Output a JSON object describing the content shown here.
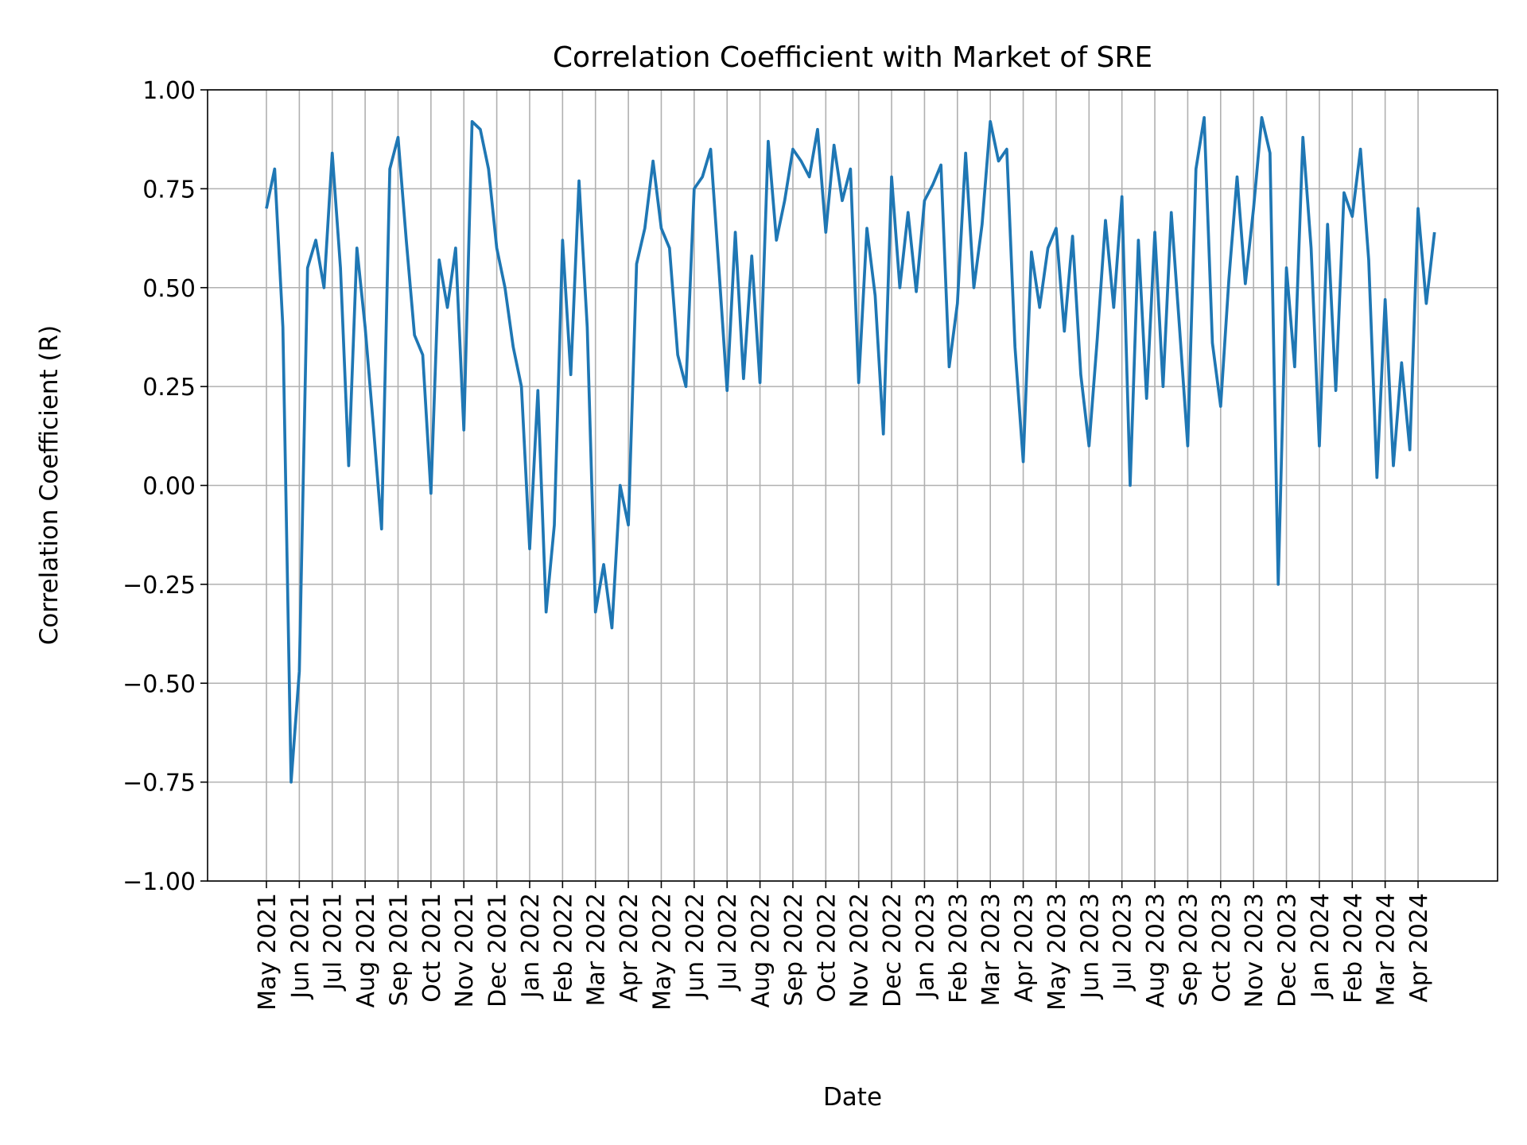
{
  "chart_data": {
    "type": "line",
    "title": "Correlation Coefficient with Market of SRE",
    "x_label": "Date",
    "y_label": "Correlation Coefficient (R)",
    "color": "#1f77b4",
    "grid": true,
    "categories": [
      "May 2021",
      null,
      null,
      null,
      "Jun 2021",
      null,
      null,
      null,
      "Jul 2021",
      null,
      null,
      null,
      "Aug 2021",
      null,
      null,
      null,
      "Sep 2021",
      null,
      null,
      null,
      "Oct 2021",
      null,
      null,
      null,
      "Nov 2021",
      null,
      null,
      null,
      "Dec 2021",
      null,
      null,
      null,
      "Jan 2022",
      null,
      null,
      null,
      "Feb 2022",
      null,
      null,
      null,
      "Mar 2022",
      null,
      null,
      null,
      "Apr 2022",
      null,
      null,
      null,
      "May 2022",
      null,
      null,
      null,
      "Jun 2022",
      null,
      null,
      null,
      "Jul 2022",
      null,
      null,
      null,
      "Aug 2022",
      null,
      null,
      null,
      "Sep 2022",
      null,
      null,
      null,
      "Oct 2022",
      null,
      null,
      null,
      "Nov 2022",
      null,
      null,
      null,
      "Dec 2022",
      null,
      null,
      null,
      "Jan 2023",
      null,
      null,
      null,
      "Feb 2023",
      null,
      null,
      null,
      "Mar 2023",
      null,
      null,
      null,
      "Apr 2023",
      null,
      null,
      null,
      "May 2023",
      null,
      null,
      null,
      "Jun 2023",
      null,
      null,
      null,
      "Jul 2023",
      null,
      null,
      null,
      "Aug 2023",
      null,
      null,
      null,
      "Sep 2023",
      null,
      null,
      null,
      "Oct 2023",
      null,
      null,
      null,
      "Nov 2023",
      null,
      null,
      null,
      "Dec 2023",
      null,
      null,
      null,
      "Jan 2024",
      null,
      null,
      null,
      "Feb 2024",
      null,
      null,
      null,
      "Mar 2024",
      null,
      null,
      null,
      "Apr 2024",
      null,
      null
    ],
    "values": [
      0.7,
      0.8,
      0.4,
      -0.75,
      -0.47,
      0.55,
      0.62,
      0.5,
      0.84,
      0.55,
      0.05,
      0.6,
      0.4,
      0.15,
      -0.11,
      0.8,
      0.88,
      0.62,
      0.38,
      0.33,
      -0.02,
      0.57,
      0.45,
      0.6,
      0.14,
      0.92,
      0.9,
      0.8,
      0.6,
      0.5,
      0.35,
      0.25,
      -0.16,
      0.24,
      -0.32,
      -0.1,
      0.62,
      0.28,
      0.77,
      0.4,
      -0.32,
      -0.2,
      -0.36,
      0.0,
      -0.1,
      0.56,
      0.65,
      0.82,
      0.65,
      0.6,
      0.33,
      0.25,
      0.75,
      0.78,
      0.85,
      0.55,
      0.24,
      0.64,
      0.27,
      0.58,
      0.26,
      0.87,
      0.62,
      0.72,
      0.85,
      0.82,
      0.78,
      0.9,
      0.64,
      0.86,
      0.72,
      0.8,
      0.26,
      0.65,
      0.48,
      0.13,
      0.78,
      0.5,
      0.69,
      0.49,
      0.72,
      0.76,
      0.81,
      0.3,
      0.46,
      0.84,
      0.5,
      0.66,
      0.92,
      0.82,
      0.85,
      0.35,
      0.06,
      0.59,
      0.45,
      0.6,
      0.65,
      0.39,
      0.63,
      0.28,
      0.1,
      0.37,
      0.67,
      0.45,
      0.73,
      0.0,
      0.62,
      0.22,
      0.64,
      0.25,
      0.69,
      0.4,
      0.1,
      0.8,
      0.93,
      0.36,
      0.2,
      0.52,
      0.78,
      0.51,
      0.7,
      0.93,
      0.84,
      -0.25,
      0.55,
      0.3,
      0.88,
      0.6,
      0.1,
      0.66,
      0.24,
      0.74,
      0.68,
      0.85,
      0.57,
      0.02,
      0.47,
      0.05,
      0.31,
      0.09,
      0.7,
      0.46,
      0.64
    ],
    "ylim": [
      -1,
      1
    ],
    "yticks": [
      {
        "value": -1,
        "label": "−1.00"
      },
      {
        "value": -0.75,
        "label": "−0.75"
      },
      {
        "value": -0.5,
        "label": "−0.50"
      },
      {
        "value": -0.25,
        "label": "−0.25"
      },
      {
        "value": 0,
        "label": "0.00"
      },
      {
        "value": 0.25,
        "label": "0.25"
      },
      {
        "value": 0.5,
        "label": "0.50"
      },
      {
        "value": 0.75,
        "label": "0.75"
      },
      {
        "value": 1,
        "label": "1.00"
      }
    ]
  }
}
